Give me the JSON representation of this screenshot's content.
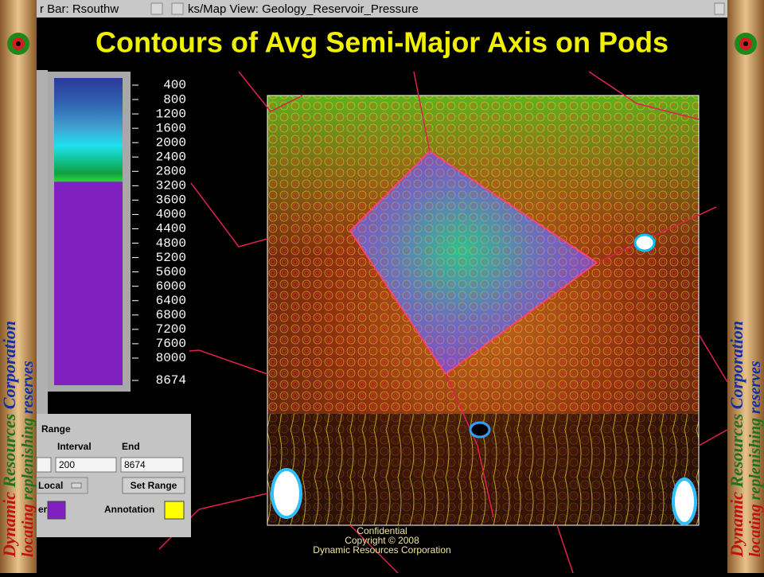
{
  "window": {
    "left_title": "r Bar: Rsouthw",
    "right_title": "ks/Map View: Geology_Reservoir_Pressure"
  },
  "slide": {
    "title": "Contours of Avg Semi-Major Axis on Pods"
  },
  "color_bar": {
    "labels": [
      "400",
      "800",
      "1200",
      "1600",
      "2000",
      "2400",
      "2800",
      "3200",
      "3600",
      "4000",
      "4400",
      "4800",
      "5200",
      "5600",
      "6000",
      "6400",
      "6800",
      "7200",
      "7600",
      "8000",
      "8674"
    ]
  },
  "range_panel": {
    "heading": "Range",
    "interval_label": "Interval",
    "end_label": "End",
    "interval_value": "200",
    "end_value": "8674",
    "mode": "Local",
    "button": "Set Range",
    "color_label": "er",
    "annotation_label": "Annotation"
  },
  "side_banner": {
    "word1": "Dynamic",
    "word2": "Resources",
    "word3": "Corporation",
    "tag1": "locating",
    "tag2": "replenishing",
    "tag3": "reserves"
  },
  "footer": {
    "line1": "Confidential",
    "line2": "Copyright © 2008",
    "line3": "Dynamic Resources Corporation"
  }
}
